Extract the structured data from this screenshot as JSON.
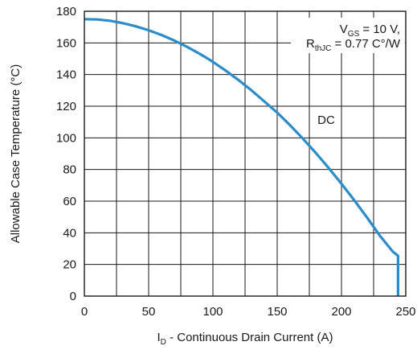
{
  "chart_data": {
    "type": "line",
    "xlabel": "I_D - Continuous Drain Current (A)",
    "xlabel_parts": {
      "main": "I",
      "sub": "D",
      "rest": " - Continuous Drain Current (A)"
    },
    "ylabel": "Allowable Case Temperature (°C)",
    "xlim": [
      0,
      250
    ],
    "ylim": [
      0,
      180
    ],
    "xticks": [
      0,
      50,
      100,
      150,
      200,
      250
    ],
    "yticks": [
      0,
      20,
      40,
      60,
      80,
      100,
      120,
      140,
      160,
      180
    ],
    "x_minor_step": 25,
    "y_grid_step": 20,
    "grid": true,
    "color": "#2b8ccc",
    "series": [
      {
        "x": [
          0,
          10,
          20,
          30,
          40,
          50,
          60,
          70,
          80,
          90,
          100,
          110,
          120,
          130,
          140,
          150,
          160,
          170,
          180,
          190,
          200,
          210,
          220,
          230,
          240,
          244,
          244
        ],
        "values": [
          175,
          174.8,
          174,
          172.5,
          170.5,
          168,
          165,
          161.5,
          157.5,
          153,
          148,
          142.5,
          136.5,
          130,
          123,
          116,
          108,
          99.5,
          90.5,
          81,
          71,
          60.5,
          49.5,
          38,
          28,
          25.5,
          0
        ]
      }
    ],
    "annotations": {
      "conditions_line1": {
        "main": "V",
        "sub": "GS",
        "rest": " = 10 V,"
      },
      "conditions_line2": {
        "main": "R",
        "sub": "thJC",
        "rest": " = 0.77 C°/W"
      },
      "curve_label": "DC"
    }
  }
}
